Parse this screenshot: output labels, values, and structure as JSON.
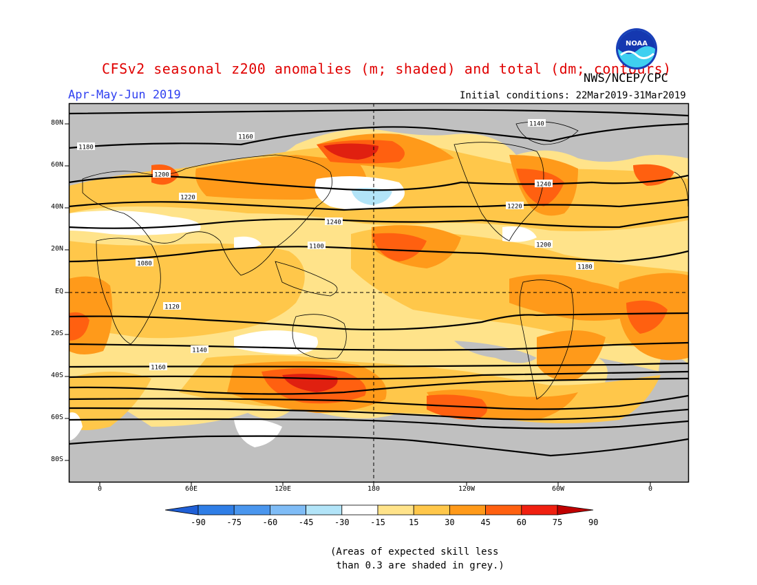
{
  "title": "CFSv2 seasonal z200 anomalies (m; shaded) and total (dm; contours)",
  "agency": "NWS/NCEP/CPC",
  "logo_text": "NOAA",
  "season": "Apr-May-Jun 2019",
  "initial_conditions": "Initial conditions: 22Mar2019-31Mar2019",
  "lat_labels": [
    "80N",
    "60N",
    "40N",
    "20N",
    "EQ",
    "20S",
    "40S",
    "60S",
    "80S"
  ],
  "lon_labels": [
    "0",
    "60E",
    "120E",
    "180",
    "120W",
    "60W",
    "0"
  ],
  "contour_labels": [
    "1140",
    "1160",
    "1180",
    "1200",
    "1220",
    "1240",
    "1080",
    "1100",
    "1120",
    "1140",
    "1160",
    "1180",
    "1200",
    "1220",
    "1240"
  ],
  "colorbar": {
    "colors": [
      "#1f5fd6",
      "#2f7ee6",
      "#4a96ee",
      "#7fbcf6",
      "#b2e4f8",
      "#ffffff",
      "#ffe38a",
      "#ffc74a",
      "#ff9a1a",
      "#ff6010",
      "#f02010",
      "#c00000"
    ],
    "labels": [
      "-90",
      "-75",
      "-60",
      "-45",
      "-30",
      "-15",
      "15",
      "30",
      "45",
      "60",
      "75",
      "90"
    ]
  },
  "note": "(Areas of expected skill less\n than 0.3 are shaded in grey.)"
}
